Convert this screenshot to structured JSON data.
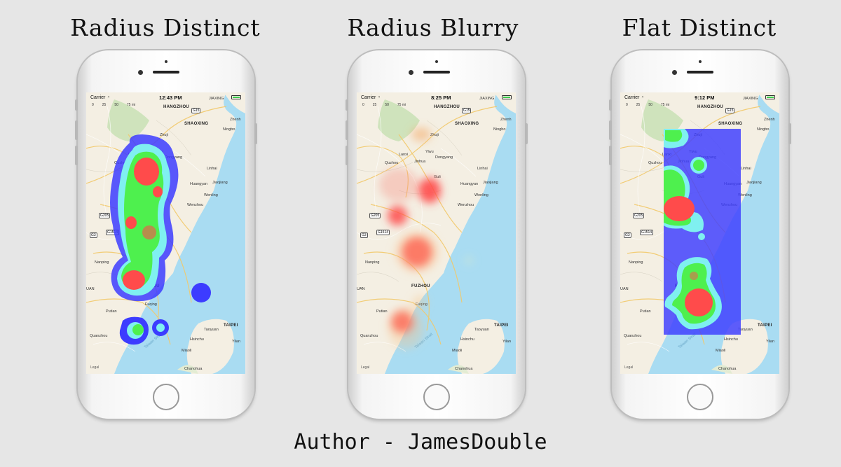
{
  "panels": [
    {
      "title": "Radius Distinct",
      "time": "12:43 PM",
      "variant": "radius-distinct"
    },
    {
      "title": "Radius Blurry",
      "time": "8:25 PM",
      "variant": "radius-blurry"
    },
    {
      "title": "Flat Distinct",
      "time": "9:12 PM",
      "variant": "flat-distinct"
    }
  ],
  "status": {
    "carrier": "Carrier",
    "wifi_icon": "wifi-icon",
    "battery_icon": "battery-icon"
  },
  "scale": {
    "ticks": [
      "0",
      "25",
      "50",
      "75 mi"
    ]
  },
  "map_labels": {
    "hangzhou": "HANGZHOU",
    "shaoxing": "SHAOXING",
    "ningbo": "Ningbo",
    "zhenhai": "Zhenh",
    "jiaxing": "JIAXING",
    "zhuji": "Zhuji",
    "yiwu": "Yiwu",
    "dongyang": "Dongyang",
    "lanxi": "Lanxi",
    "jinhua": "Jinhua",
    "quzhou": "Quzhou",
    "linhai": "Linhai",
    "huangyan": "Huangyan",
    "jiaojiang": "Jiaojiang",
    "wenling": "Wenling",
    "wenzhou": "Wenzhou",
    "nanping": "Nanping",
    "fuzhou": "FUZHOU",
    "fuqing": "Fuqing",
    "putian": "Putian",
    "quanzhou": "Quanzhou",
    "taoyuan": "Taoyuan",
    "taipei": "TAIPEI",
    "hsinchu": "Hsinchu",
    "yilan": "Yilan",
    "miaoli": "Miaoli",
    "changhua": "Chanohua",
    "strait": "Taiwan Strait",
    "lishui": "Guli",
    "legal": "Legal",
    "g15": "G15",
    "g205": "G205",
    "g3": "G3",
    "g1514": "G1514",
    "huan": "UAN"
  },
  "footer": "Author - JamesDouble",
  "colors": {
    "heat_red": "#ff4b4b",
    "heat_green": "#4ef04e",
    "heat_cyan": "#7ff0f0",
    "heat_blue": "#3c3cff",
    "sea": "#a9dcf2",
    "land": "#f4efe3"
  }
}
